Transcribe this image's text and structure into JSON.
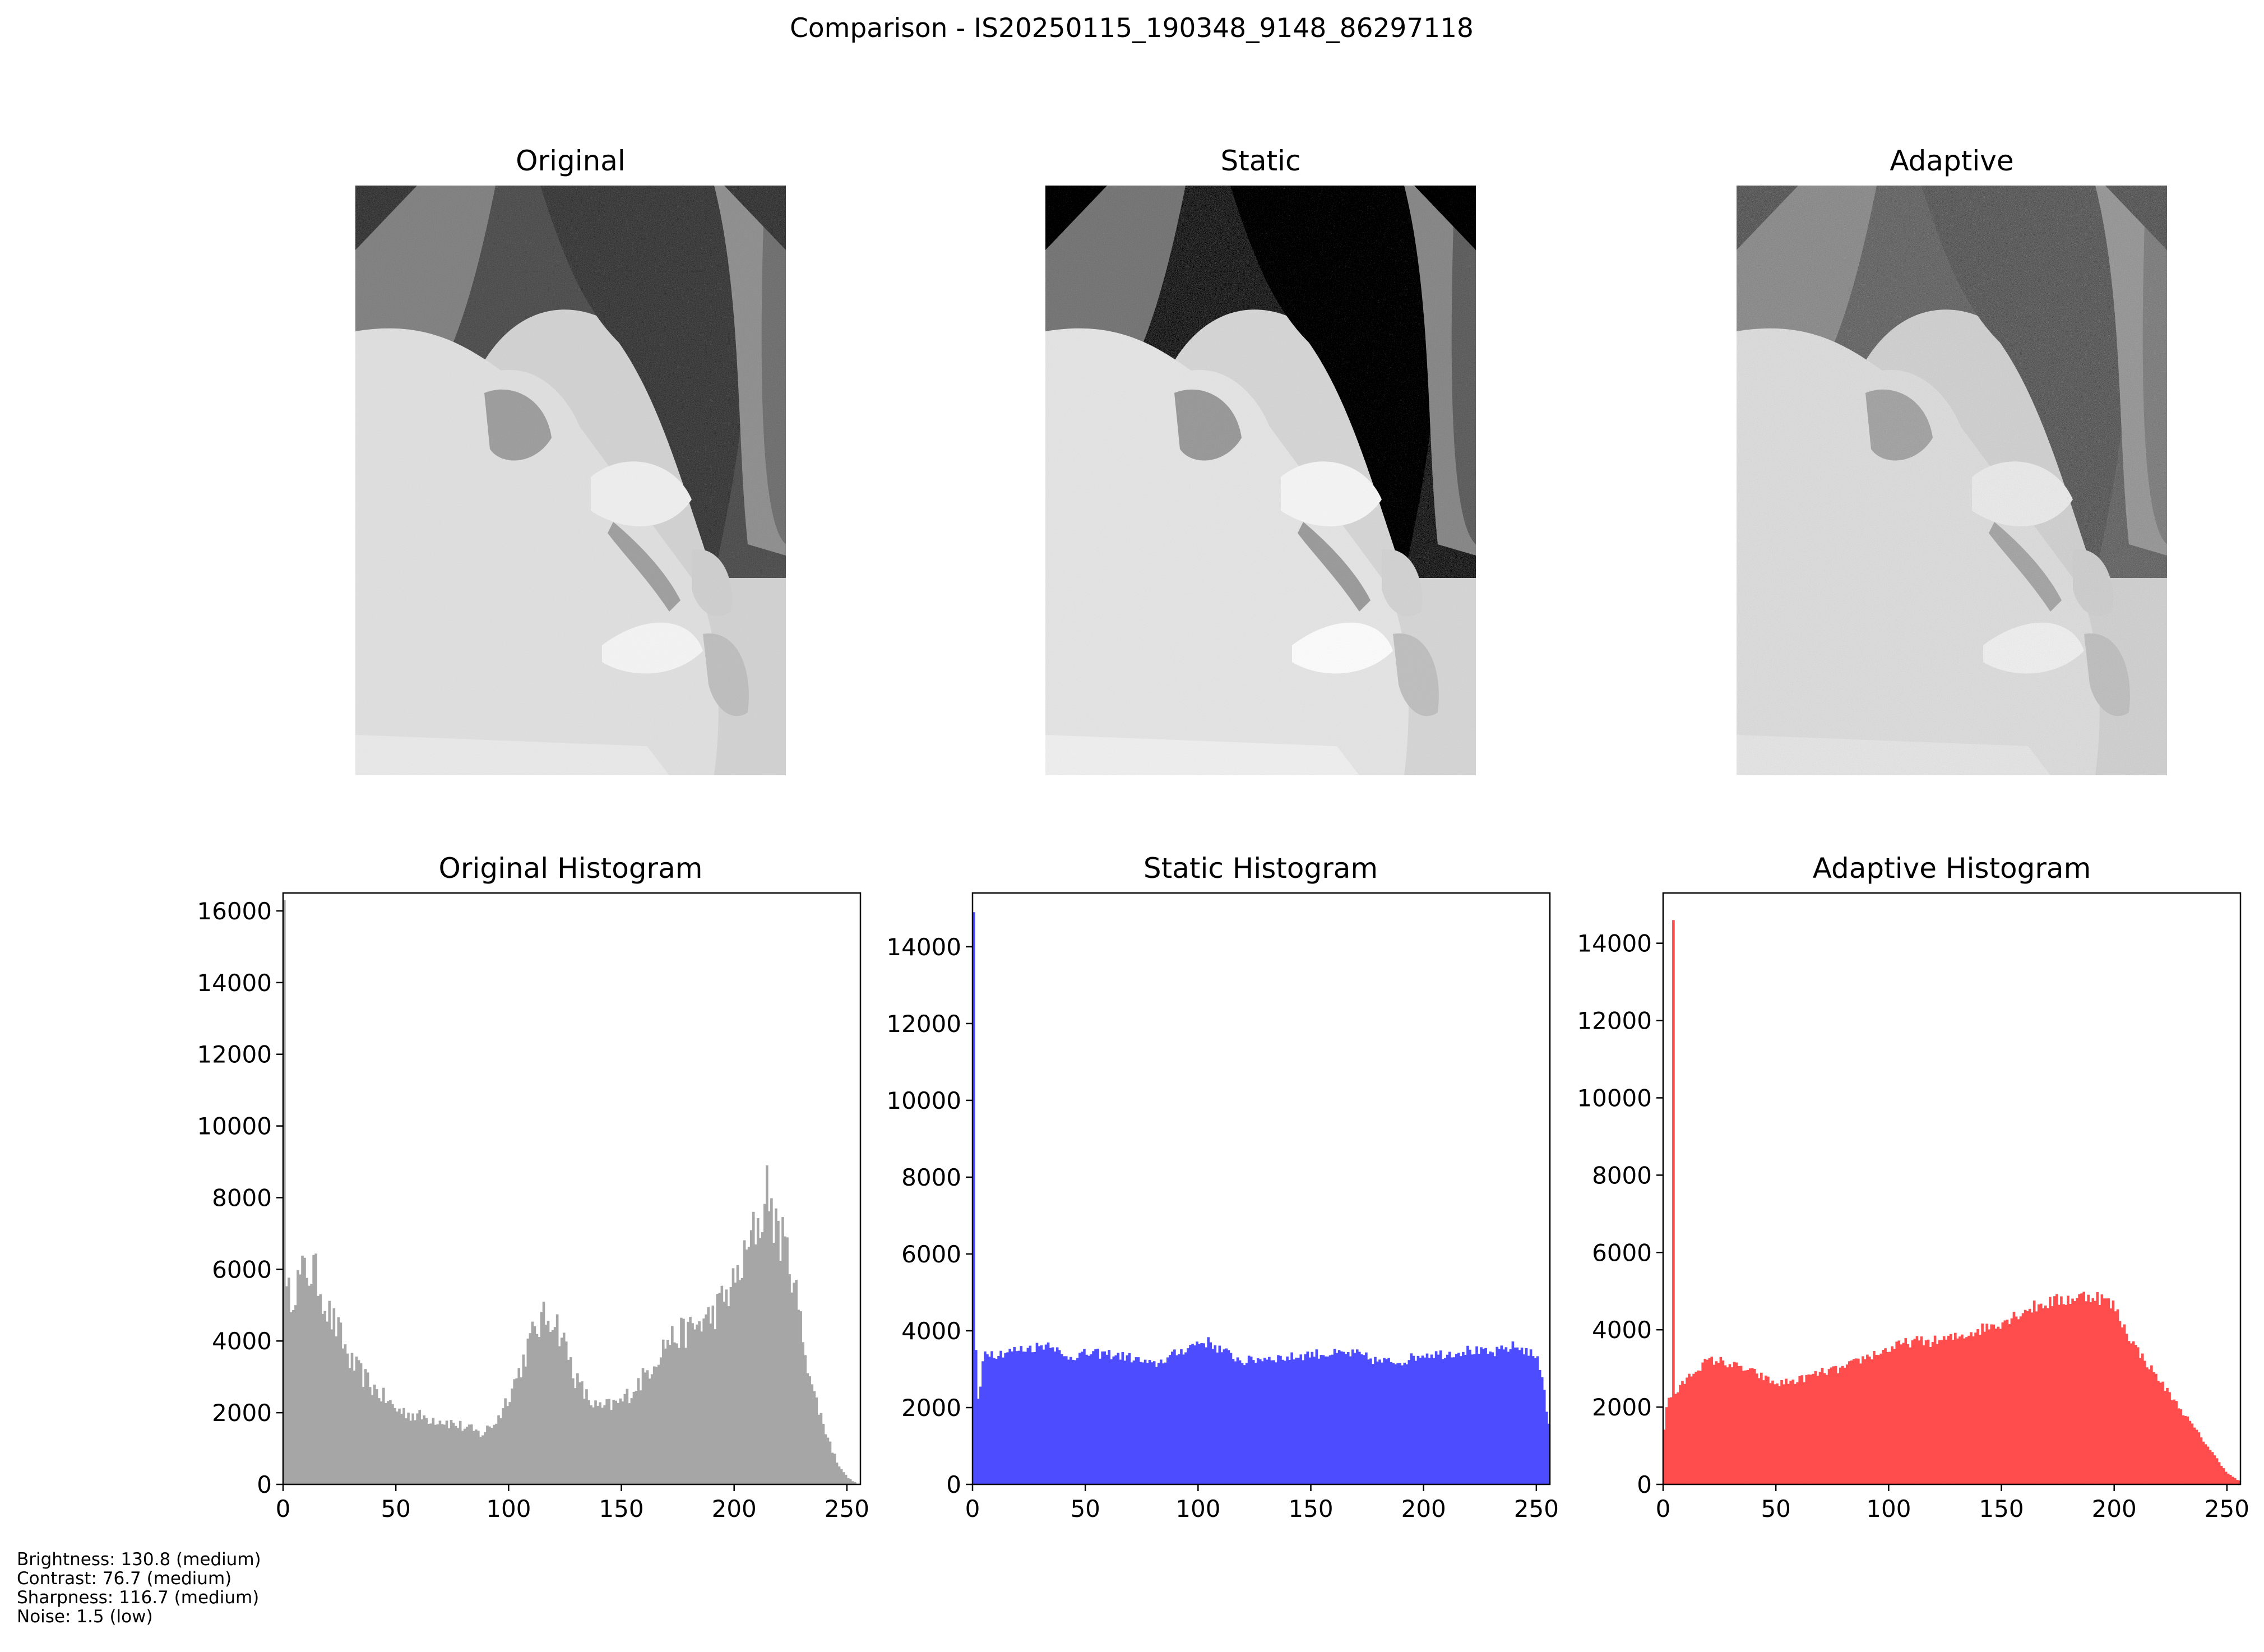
{
  "figure": {
    "suptitle": "Comparison - IS20250115_190348_9148_86297118"
  },
  "images": [
    {
      "title": "Original",
      "variant": "original"
    },
    {
      "title": "Static",
      "variant": "static"
    },
    {
      "title": "Adaptive",
      "variant": "adaptive"
    }
  ],
  "colors": {
    "original": "#a6a6a6",
    "static": "#4d4dff",
    "adaptive": "#ff4d4d"
  },
  "stats": [
    "Brightness: 130.8 (medium)",
    "Contrast: 76.7 (medium)",
    "Sharpness: 116.7 (medium)",
    "Noise: 1.5 (low)"
  ],
  "chart_data": [
    {
      "type": "bar",
      "title": "Original Histogram",
      "xlabel": "",
      "ylabel": "",
      "xlim": [
        0,
        256
      ],
      "ylim": [
        0,
        16500
      ],
      "xticks": [
        0,
        50,
        100,
        150,
        200,
        250
      ],
      "yticks": [
        0,
        2000,
        4000,
        6000,
        8000,
        10000,
        12000,
        14000,
        16000
      ],
      "color": "#a6a6a6",
      "bins": 256,
      "x": [
        0,
        5,
        10,
        15,
        20,
        25,
        30,
        40,
        50,
        60,
        70,
        80,
        88,
        95,
        100,
        105,
        110,
        115,
        120,
        125,
        130,
        135,
        140,
        150,
        160,
        170,
        180,
        190,
        200,
        205,
        210,
        215,
        220,
        225,
        230,
        235,
        240,
        245,
        250,
        255
      ],
      "y": [
        5000,
        5500,
        6000,
        5800,
        4800,
        4200,
        3400,
        2700,
        2100,
        1900,
        1800,
        1600,
        1400,
        1800,
        2500,
        3200,
        4100,
        4600,
        4700,
        3900,
        2900,
        2400,
        2100,
        2300,
        3000,
        4000,
        4300,
        4700,
        5600,
        6300,
        7300,
        7500,
        7000,
        6200,
        4300,
        2600,
        1600,
        700,
        200,
        0
      ],
      "peaks": [
        {
          "x": 0,
          "y": 16300
        },
        {
          "x": 214,
          "y": 8900
        },
        {
          "x": 218,
          "y": 7700
        },
        {
          "x": 13,
          "y": 6400
        }
      ]
    },
    {
      "type": "bar",
      "title": "Static Histogram",
      "xlabel": "",
      "ylabel": "",
      "xlim": [
        0,
        256
      ],
      "ylim": [
        0,
        15400
      ],
      "xticks": [
        0,
        50,
        100,
        150,
        200,
        250
      ],
      "yticks": [
        0,
        2000,
        4000,
        6000,
        8000,
        10000,
        12000,
        14000
      ],
      "color": "#4d4dff",
      "bins": 256,
      "x": [
        0,
        1,
        3,
        5,
        10,
        20,
        30,
        35,
        40,
        50,
        60,
        70,
        80,
        90,
        100,
        105,
        110,
        120,
        130,
        140,
        150,
        160,
        170,
        180,
        190,
        200,
        210,
        220,
        230,
        240,
        245,
        250,
        253,
        255
      ],
      "y": [
        1700,
        2000,
        2200,
        3500,
        3400,
        3500,
        3600,
        3700,
        3300,
        3400,
        3400,
        3300,
        3100,
        3400,
        3700,
        3700,
        3500,
        3200,
        3300,
        3300,
        3400,
        3400,
        3400,
        3200,
        3200,
        3400,
        3400,
        3500,
        3400,
        3600,
        3500,
        3300,
        2800,
        1600
      ],
      "peaks": [
        {
          "x": 0,
          "y": 14900
        },
        {
          "x": 1,
          "y": 3500
        }
      ]
    },
    {
      "type": "bar",
      "title": "Adaptive Histogram",
      "xlabel": "",
      "ylabel": "",
      "xlim": [
        0,
        256
      ],
      "ylim": [
        0,
        15300
      ],
      "xticks": [
        0,
        50,
        100,
        150,
        200,
        250
      ],
      "yticks": [
        0,
        2000,
        4000,
        6000,
        8000,
        10000,
        12000,
        14000
      ],
      "color": "#ff4d4d",
      "bins": 256,
      "x": [
        0,
        2,
        5,
        10,
        15,
        20,
        25,
        30,
        40,
        50,
        60,
        70,
        80,
        90,
        100,
        110,
        120,
        130,
        140,
        150,
        160,
        170,
        180,
        190,
        195,
        200,
        205,
        210,
        220,
        230,
        240,
        250,
        255
      ],
      "y": [
        1200,
        2200,
        2300,
        2700,
        3000,
        3200,
        3200,
        3100,
        2900,
        2600,
        2700,
        2900,
        3000,
        3300,
        3500,
        3700,
        3700,
        3800,
        4000,
        4200,
        4500,
        4700,
        4800,
        4900,
        4800,
        4600,
        4000,
        3500,
        2700,
        1900,
        1100,
        300,
        100
      ],
      "peaks": [
        {
          "x": 4,
          "y": 14600
        }
      ]
    }
  ]
}
